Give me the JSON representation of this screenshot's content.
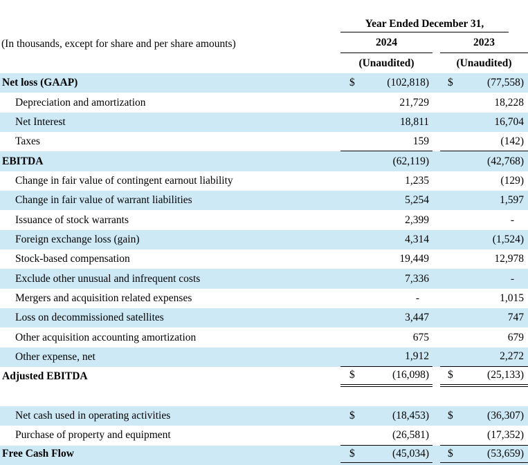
{
  "meta": {
    "units_label": "(In thousands, except for share and per share amounts)",
    "currency_symbol": "$"
  },
  "header": {
    "group_title": "Year Ended December 31,",
    "columns": [
      {
        "year": "2024",
        "note": "(Unaudited)"
      },
      {
        "year": "2023",
        "note": "(Unaudited)"
      }
    ]
  },
  "colors": {
    "row_highlight": "#cde9f6",
    "text": "#000000",
    "rule": "#000000"
  },
  "rows": [
    {
      "label": "Net loss (GAAP)",
      "bold": true,
      "indent": false,
      "dollar": true,
      "shade": true,
      "v2024": "(102,818)",
      "v2023": "(77,558)",
      "underline": null
    },
    {
      "label": "Depreciation and amortization",
      "bold": false,
      "indent": true,
      "dollar": false,
      "shade": false,
      "v2024": "21,729",
      "v2023": "18,228",
      "underline": null
    },
    {
      "label": "Net Interest",
      "bold": false,
      "indent": true,
      "dollar": false,
      "shade": true,
      "v2024": "18,811",
      "v2023": "16,704",
      "underline": null
    },
    {
      "label": "Taxes",
      "bold": false,
      "indent": true,
      "dollar": false,
      "shade": false,
      "v2024": "159",
      "v2023": "(142)",
      "underline": "single"
    },
    {
      "label": "EBITDA",
      "bold": true,
      "indent": false,
      "dollar": false,
      "shade": true,
      "v2024": "(62,119)",
      "v2023": "(42,768)",
      "underline": null
    },
    {
      "label": "Change in fair value of contingent earnout liability",
      "bold": false,
      "indent": true,
      "dollar": false,
      "shade": false,
      "v2024": "1,235",
      "v2023": "(129)",
      "underline": null
    },
    {
      "label": "Change in fair value of warrant liabilities",
      "bold": false,
      "indent": true,
      "dollar": false,
      "shade": true,
      "v2024": "5,254",
      "v2023": "1,597",
      "underline": null
    },
    {
      "label": "Issuance of stock warrants",
      "bold": false,
      "indent": true,
      "dollar": false,
      "shade": false,
      "v2024": "2,399",
      "v2023": "-",
      "underline": null
    },
    {
      "label": "Foreign exchange loss (gain)",
      "bold": false,
      "indent": true,
      "dollar": false,
      "shade": true,
      "v2024": "4,314",
      "v2023": "(1,524)",
      "underline": null
    },
    {
      "label": "Stock-based compensation",
      "bold": false,
      "indent": true,
      "dollar": false,
      "shade": false,
      "v2024": "19,449",
      "v2023": "12,978",
      "underline": null
    },
    {
      "label": "Exclude other unusual and infrequent costs",
      "bold": false,
      "indent": true,
      "dollar": false,
      "shade": true,
      "v2024": "7,336",
      "v2023": "-",
      "underline": null
    },
    {
      "label": "Mergers and acquisition related expenses",
      "bold": false,
      "indent": true,
      "dollar": false,
      "shade": false,
      "v2024": "-",
      "v2023": "1,015",
      "underline": null
    },
    {
      "label": "Loss on decommissioned satellites",
      "bold": false,
      "indent": true,
      "dollar": false,
      "shade": true,
      "v2024": "3,447",
      "v2023": "747",
      "underline": null
    },
    {
      "label": "Other acquisition accounting amortization",
      "bold": false,
      "indent": true,
      "dollar": false,
      "shade": false,
      "v2024": "675",
      "v2023": "679",
      "underline": null
    },
    {
      "label": "Other expense, net",
      "bold": false,
      "indent": true,
      "dollar": false,
      "shade": true,
      "v2024": "1,912",
      "v2023": "2,272",
      "underline": "single"
    },
    {
      "label": "Adjusted EBITDA",
      "bold": true,
      "indent": false,
      "dollar": true,
      "shade": false,
      "v2024": "(16,098)",
      "v2023": "(25,133)",
      "underline": "double"
    },
    {
      "spacer": true
    },
    {
      "label": "Net cash used in operating activities",
      "bold": false,
      "indent": true,
      "dollar": true,
      "shade": true,
      "v2024": "(18,453)",
      "v2023": "(36,307)",
      "underline": null
    },
    {
      "label": "Purchase of property and equipment",
      "bold": false,
      "indent": true,
      "dollar": false,
      "shade": false,
      "v2024": "(26,581)",
      "v2023": "(17,352)",
      "underline": "single"
    },
    {
      "label": "Free Cash Flow",
      "bold": true,
      "indent": false,
      "dollar": true,
      "shade": true,
      "v2024": "(45,034)",
      "v2023": "(53,659)",
      "underline": "single",
      "last": true
    }
  ]
}
